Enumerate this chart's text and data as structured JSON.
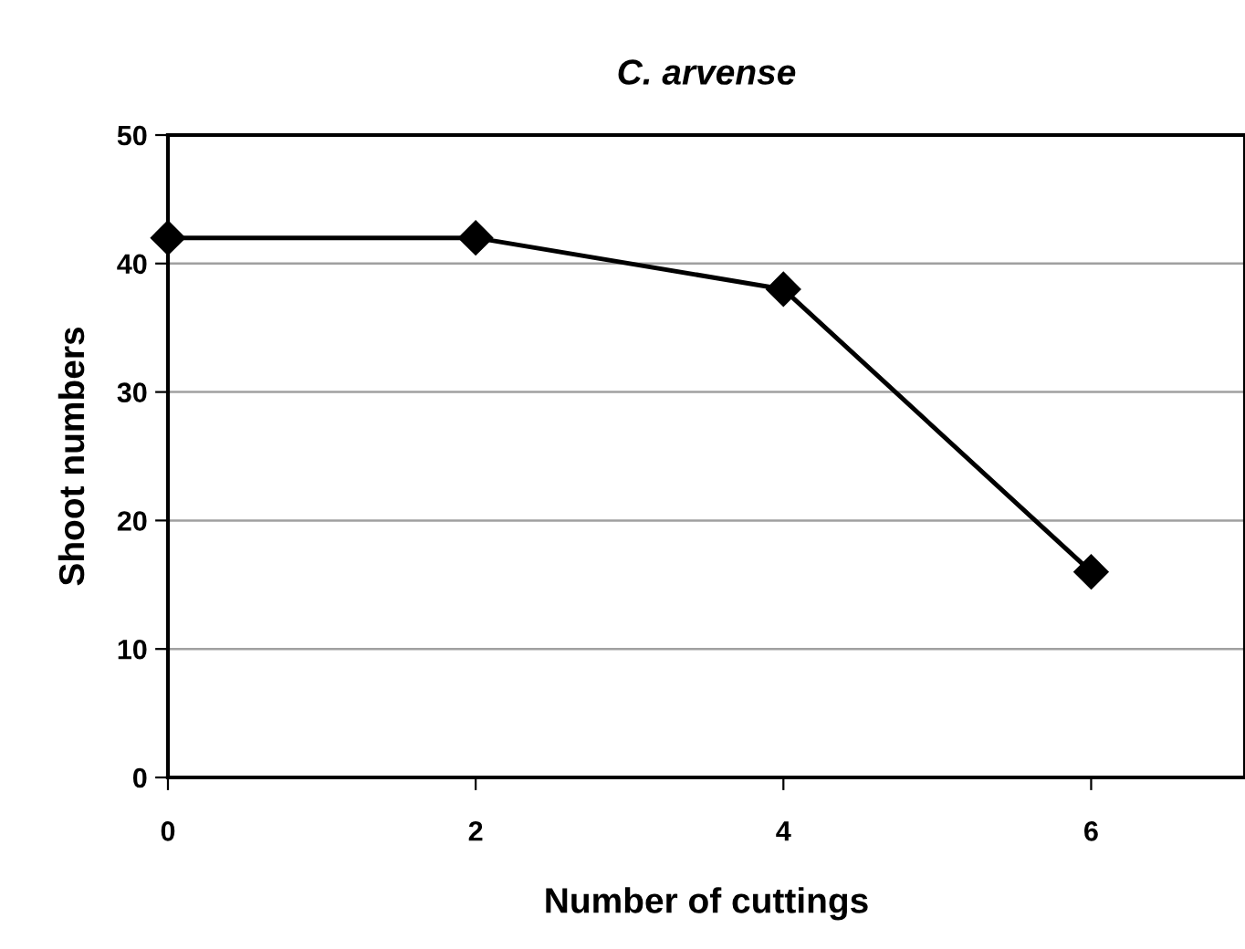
{
  "chart_data": {
    "type": "line",
    "title": "C. arvense",
    "xlabel": "Number of cuttings",
    "ylabel": "Shoot numbers",
    "x": [
      0,
      2,
      4,
      6
    ],
    "series": [
      {
        "color": "#000000",
        "values": [
          42,
          42,
          38,
          16
        ]
      }
    ],
    "xlim": [
      0,
      7
    ],
    "xticks": [
      0,
      2,
      4,
      6
    ],
    "ylim": [
      0,
      50
    ],
    "yticks": [
      0,
      10,
      20,
      30,
      40,
      50
    ],
    "grid": "y",
    "marker": "diamond",
    "line_style": "solid"
  }
}
